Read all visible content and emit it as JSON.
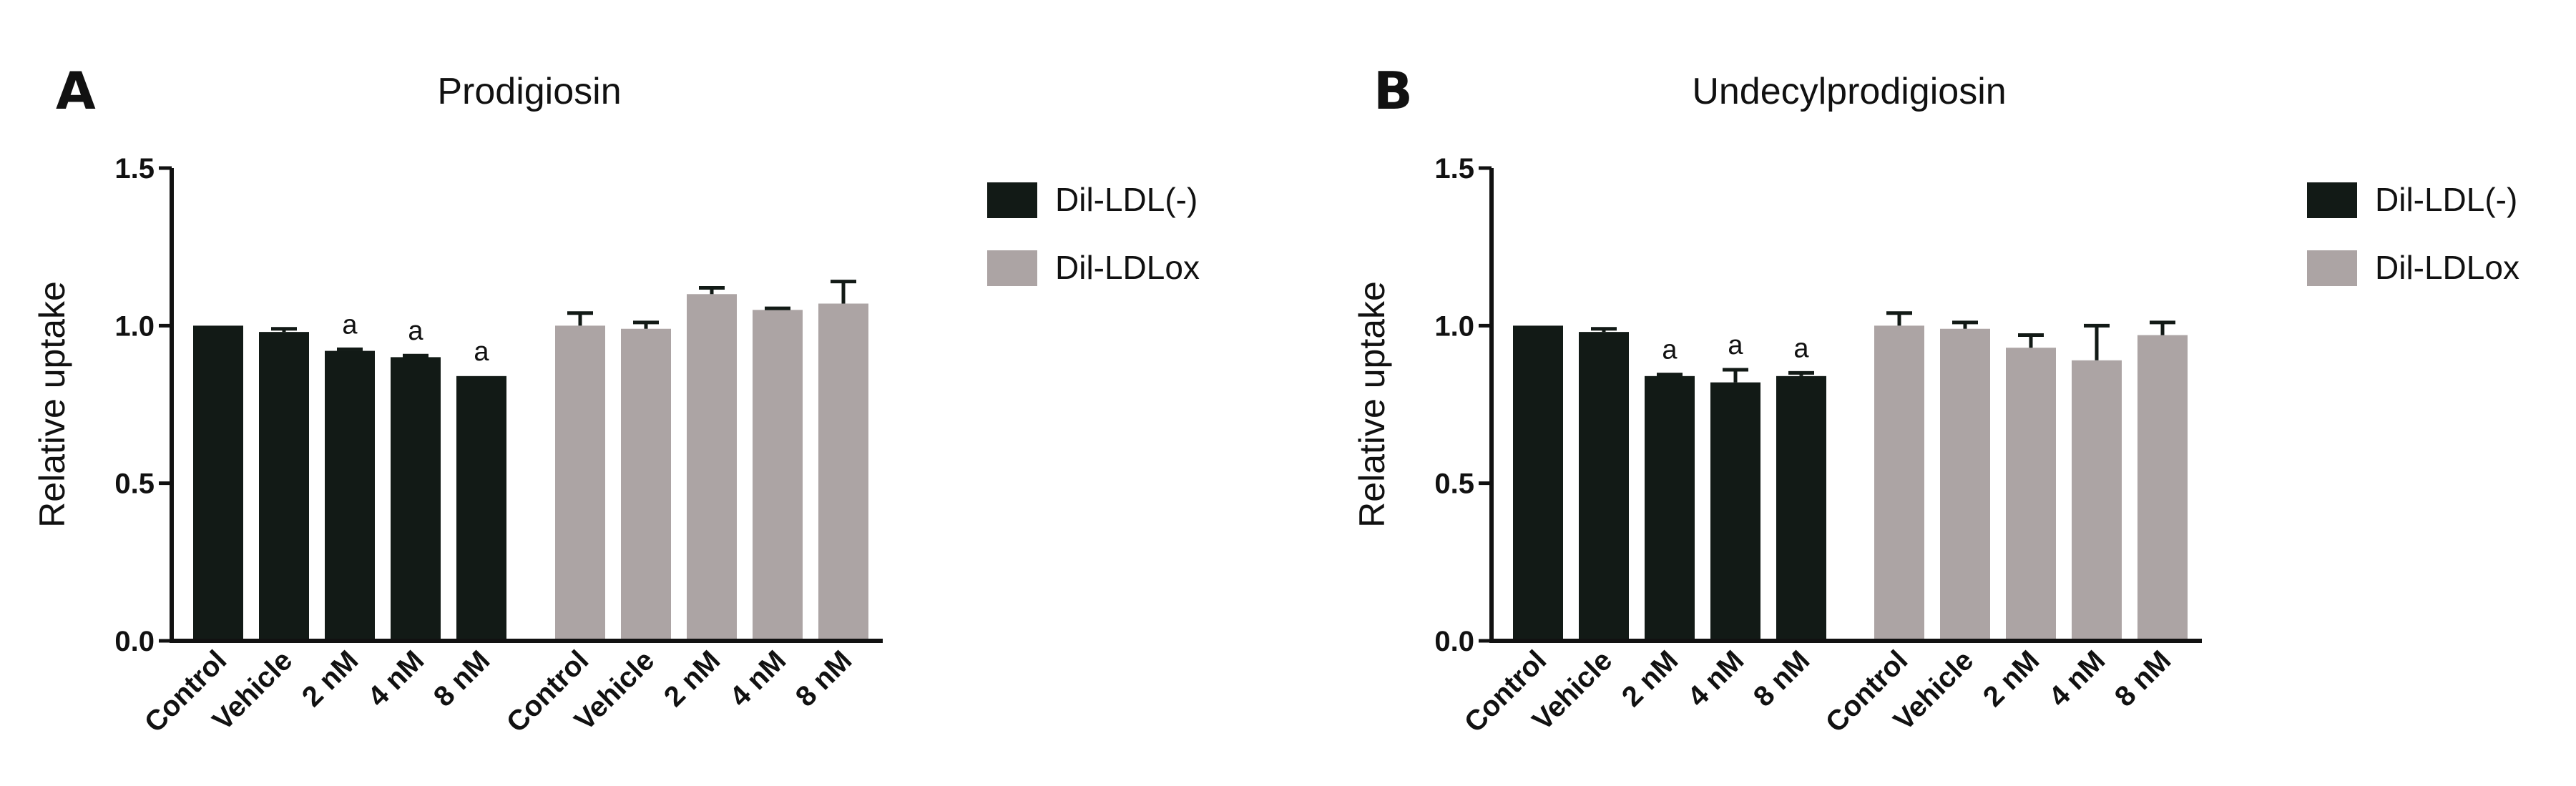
{
  "colors": {
    "series1": "#121a16",
    "series2": "#aca4a4",
    "axis": "#111111"
  },
  "chart_data": [
    {
      "panel_label": "A",
      "type": "bar",
      "title": "Prodigiosin",
      "ylabel": "Relative uptake",
      "ylim": [
        0,
        1.5
      ],
      "yticks": [
        "0.0",
        "0.5",
        "1.0",
        "1.5"
      ],
      "legend": {
        "position": "right",
        "entries": [
          "Dil-LDL(-)",
          "Dil-LDLox"
        ]
      },
      "series": [
        {
          "name": "Dil-LDL(-)",
          "categories": [
            "Control",
            "Vehicle",
            "2 nM",
            "4 nM",
            "8 nM"
          ],
          "values": [
            1.0,
            0.98,
            0.92,
            0.9,
            0.84
          ],
          "errors": [
            0.0,
            0.01,
            0.005,
            0.005,
            0.0
          ],
          "annotations": [
            "",
            "",
            "a",
            "a",
            "a"
          ]
        },
        {
          "name": "Dil-LDLox",
          "categories": [
            "Control",
            "Vehicle",
            "2 nM",
            "4 nM",
            "8 nM"
          ],
          "values": [
            1.0,
            0.99,
            1.1,
            1.05,
            1.07
          ],
          "errors": [
            0.04,
            0.02,
            0.02,
            0.005,
            0.07
          ],
          "annotations": [
            "",
            "",
            "",
            "",
            ""
          ]
        }
      ]
    },
    {
      "panel_label": "B",
      "type": "bar",
      "title": "Undecylprodigiosin",
      "ylabel": "Relative uptake",
      "ylim": [
        0,
        1.5
      ],
      "yticks": [
        "0.0",
        "0.5",
        "1.0",
        "1.5"
      ],
      "legend": {
        "position": "right",
        "entries": [
          "Dil-LDL(-)",
          "Dil-LDLox"
        ]
      },
      "series": [
        {
          "name": "Dil-LDL(-)",
          "categories": [
            "Control",
            "Vehicle",
            "2 nM",
            "4 nM",
            "8 nM"
          ],
          "values": [
            1.0,
            0.98,
            0.84,
            0.82,
            0.84
          ],
          "errors": [
            0.0,
            0.01,
            0.005,
            0.04,
            0.01
          ],
          "annotations": [
            "",
            "",
            "a",
            "a",
            "a"
          ]
        },
        {
          "name": "Dil-LDLox",
          "categories": [
            "Control",
            "Vehicle",
            "2 nM",
            "4 nM",
            "8 nM"
          ],
          "values": [
            1.0,
            0.99,
            0.93,
            0.89,
            0.97
          ],
          "errors": [
            0.04,
            0.02,
            0.04,
            0.11,
            0.04
          ],
          "annotations": [
            "",
            "",
            "",
            "",
            ""
          ]
        }
      ]
    }
  ]
}
